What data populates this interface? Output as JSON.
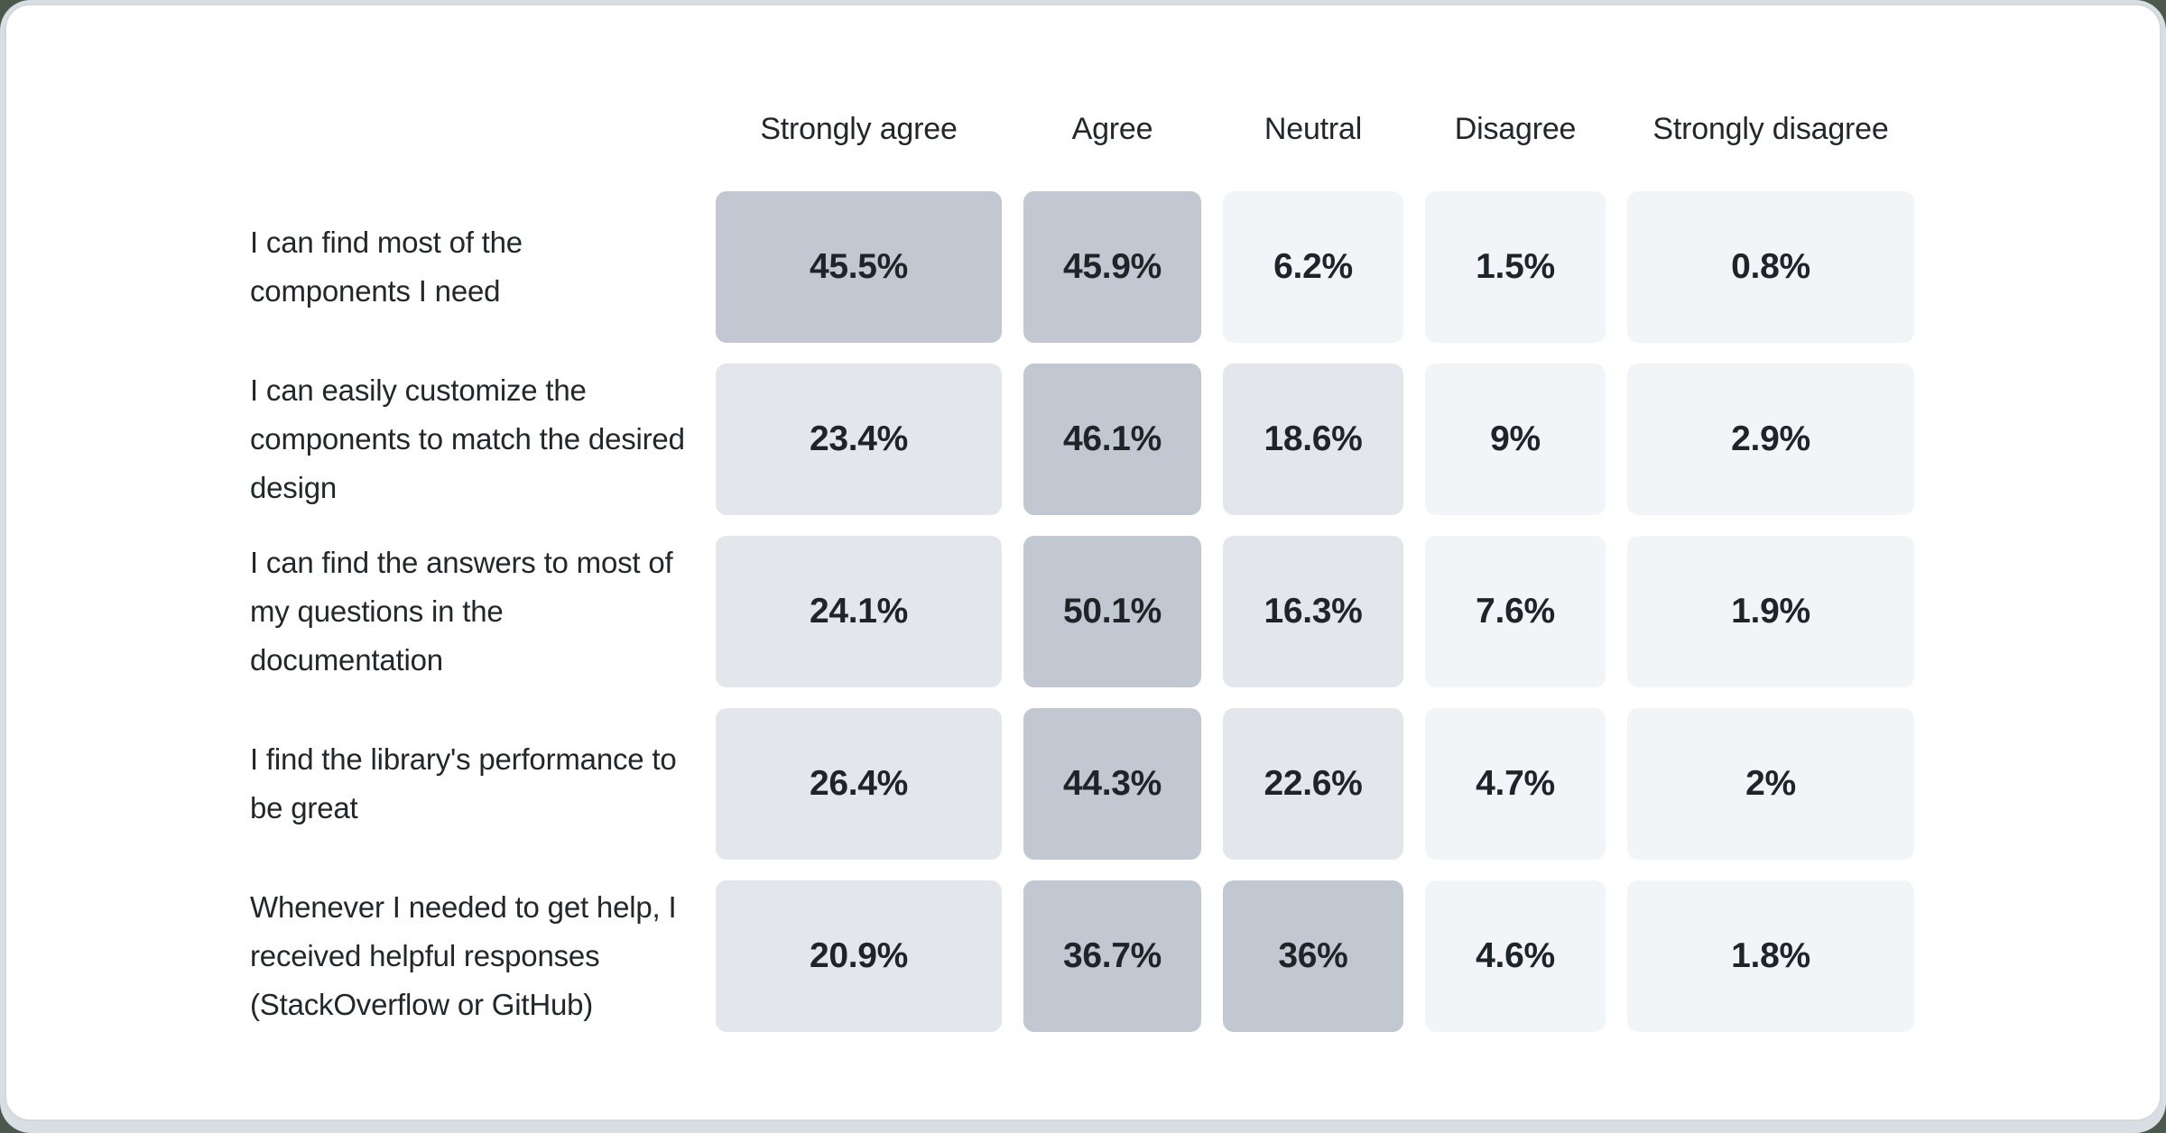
{
  "page": {
    "background_green": "#4b594d",
    "frame_gray": "#d9dee3",
    "card_background": "#ffffff",
    "card_border": "#d2d8dd",
    "text_color": "#21272a"
  },
  "chart_data": {
    "type": "heatmap",
    "title": "",
    "unit": "%",
    "legend_position": "none",
    "grid": false,
    "columns": [
      "Strongly agree",
      "Agree",
      "Neutral",
      "Disagree",
      "Strongly disagree"
    ],
    "rows": [
      {
        "label": "I can find most of the components I need",
        "values": [
          45.5,
          45.9,
          6.2,
          1.5,
          0.8
        ],
        "display": [
          "45.5%",
          "45.9%",
          "6.2%",
          "1.5%",
          "0.8%"
        ]
      },
      {
        "label": "I can easily customize the components to match the desired design",
        "values": [
          23.4,
          46.1,
          18.6,
          9,
          2.9
        ],
        "display": [
          "23.4%",
          "46.1%",
          "18.6%",
          "9%",
          "2.9%"
        ]
      },
      {
        "label": "I can find the answers to most of my questions in the documentation",
        "values": [
          24.1,
          50.1,
          16.3,
          7.6,
          1.9
        ],
        "display": [
          "24.1%",
          "50.1%",
          "16.3%",
          "7.6%",
          "1.9%"
        ]
      },
      {
        "label": "I find the library's performance to be great",
        "values": [
          26.4,
          44.3,
          22.6,
          4.7,
          2
        ],
        "display": [
          "26.4%",
          "44.3%",
          "22.6%",
          "4.7%",
          "2%"
        ]
      },
      {
        "label": "Whenever I needed to get help, I received helpful responses (StackOverflow or GitHub)",
        "values": [
          20.9,
          36.7,
          36,
          4.6,
          1.8
        ],
        "display": [
          "20.9%",
          "36.7%",
          "36%",
          "4.6%",
          "1.8%"
        ]
      }
    ],
    "color_scale": {
      "light": "#f2f5f8",
      "medium": "#e3e7eb",
      "dark": "#c1c8d1",
      "thresholds": [
        10,
        30
      ]
    }
  }
}
